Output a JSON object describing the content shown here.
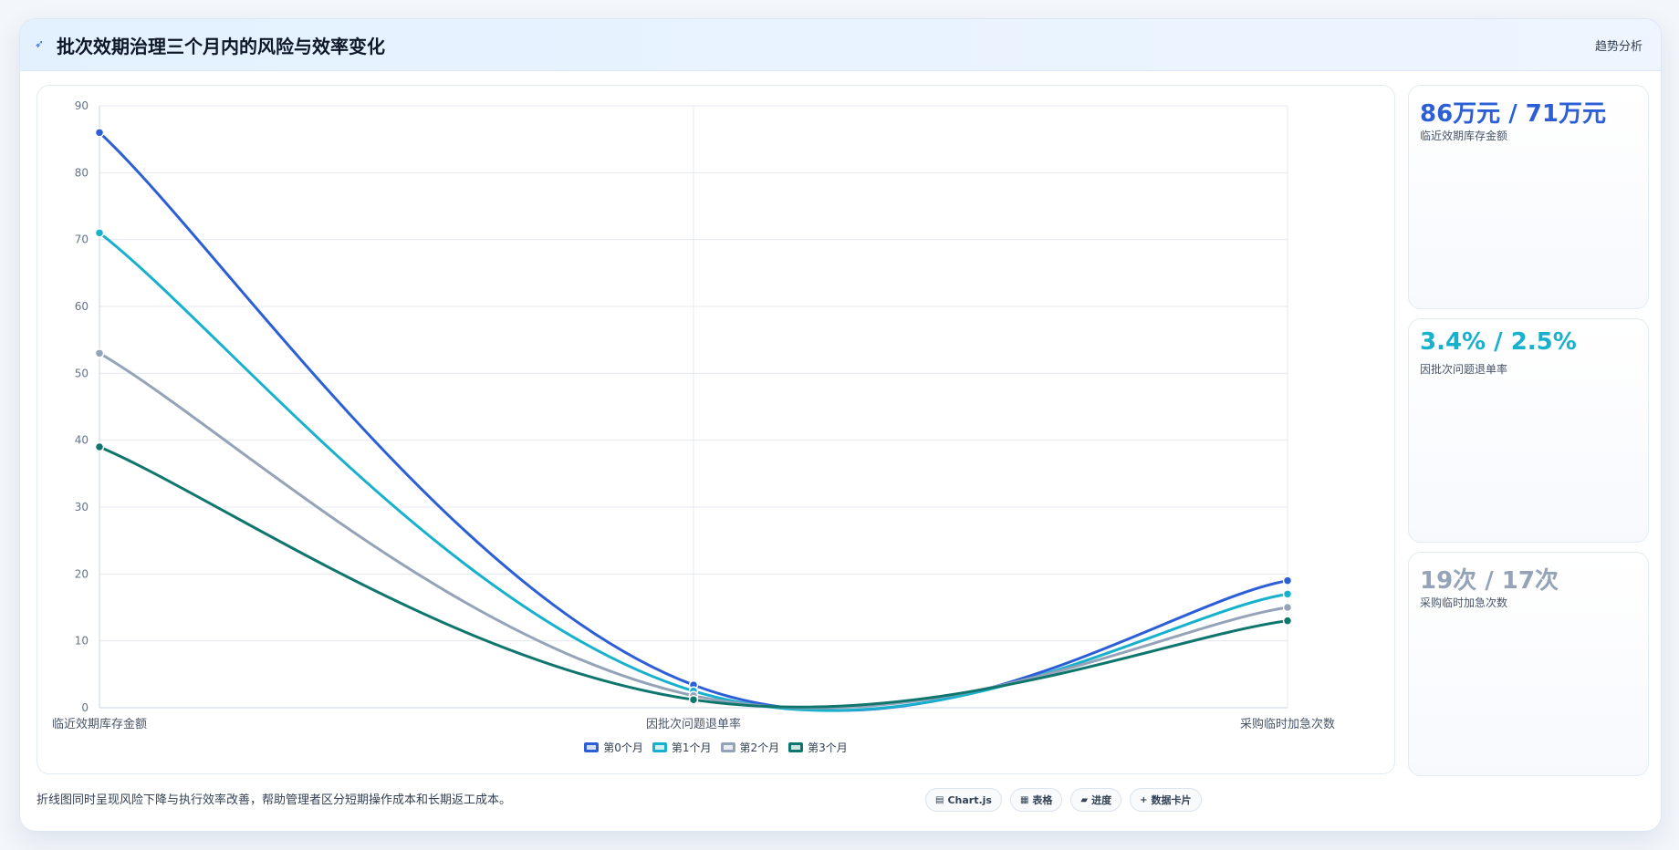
{
  "header": {
    "icon": "chart-icon",
    "title": "批次效期治理三个月内的风险与效率变化",
    "tag": "趋势分析"
  },
  "kpis": [
    {
      "value": "86万元 / 71万元",
      "label": "临近效期库存金额",
      "color": "#2c5fd6"
    },
    {
      "value": "3.4% / 2.5%",
      "label": "因批次问题退单率",
      "color": "#18b1cd"
    },
    {
      "value": "19次 / 17次",
      "label": "采购临时加急次数",
      "color": "#94a3b8"
    }
  ],
  "footer": {
    "note": "折线图同时呈现风险下降与执行效率改善，帮助管理者区分短期操作成本和长期返工成本。",
    "buttons": [
      {
        "icon": "chart-icon",
        "glyph": "▤",
        "label": "Chart.js"
      },
      {
        "icon": "table-icon",
        "glyph": "▦",
        "label": "表格"
      },
      {
        "icon": "progress-icon",
        "glyph": "▰",
        "label": "进度"
      },
      {
        "icon": "card-icon",
        "glyph": "+",
        "label": "数据卡片"
      }
    ]
  },
  "chart_data": {
    "type": "line",
    "categories": [
      "临近效期库存金额",
      "因批次问题退单率",
      "采购临时加急次数"
    ],
    "ylim": [
      0,
      90
    ],
    "yticks": [
      0,
      10,
      20,
      30,
      40,
      50,
      60,
      70,
      80,
      90
    ],
    "grid": true,
    "legend_position": "bottom",
    "series": [
      {
        "name": "第0个月",
        "values": [
          86,
          3.4,
          19
        ],
        "color": "#2c5fd6"
      },
      {
        "name": "第1个月",
        "values": [
          71,
          2.5,
          17
        ],
        "color": "#18b1cd"
      },
      {
        "name": "第2个月",
        "values": [
          53,
          1.8,
          15
        ],
        "color": "#94a3b8"
      },
      {
        "name": "第3个月",
        "values": [
          39,
          1.2,
          13
        ],
        "color": "#0f766e"
      }
    ]
  }
}
